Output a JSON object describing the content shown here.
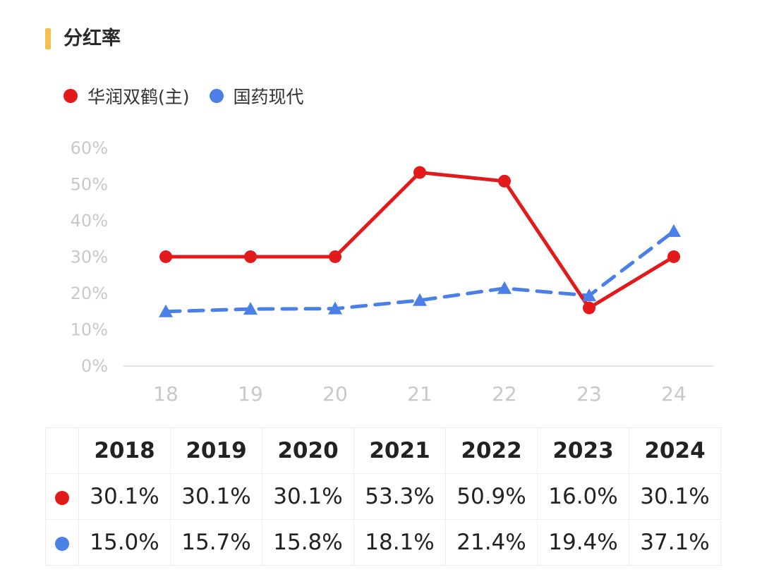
{
  "page": {
    "title": "分红率"
  },
  "legend": [
    {
      "label": "华润双鹤(主)",
      "color": "#e31a1c"
    },
    {
      "label": "国药现代",
      "color": "#4a7fe8"
    }
  ],
  "chart_data": {
    "type": "line",
    "categories": [
      "18",
      "19",
      "20",
      "21",
      "22",
      "23",
      "24"
    ],
    "y_ticks": [
      "0%",
      "10%",
      "20%",
      "30%",
      "40%",
      "50%",
      "60%"
    ],
    "ylim": [
      0,
      60
    ],
    "series": [
      {
        "name": "华润双鹤(主)",
        "color": "#e31a1c",
        "marker": "circle",
        "line_style": "solid",
        "values": [
          30.1,
          30.1,
          30.1,
          53.3,
          50.9,
          16.0,
          30.1
        ]
      },
      {
        "name": "国药现代",
        "color": "#4a7fe8",
        "marker": "triangle",
        "line_style": "dashed",
        "values": [
          15.0,
          15.7,
          15.8,
          18.1,
          21.4,
          19.4,
          37.1
        ]
      }
    ]
  },
  "table": {
    "years": [
      "2018",
      "2019",
      "2020",
      "2021",
      "2022",
      "2023",
      "2024"
    ],
    "rows": [
      {
        "color": "#e31a1c",
        "values": [
          "30.1%",
          "30.1%",
          "30.1%",
          "53.3%",
          "50.9%",
          "16.0%",
          "30.1%"
        ]
      },
      {
        "color": "#4a7fe8",
        "values": [
          "15.0%",
          "15.7%",
          "15.8%",
          "18.1%",
          "21.4%",
          "19.4%",
          "37.1%"
        ]
      }
    ]
  }
}
